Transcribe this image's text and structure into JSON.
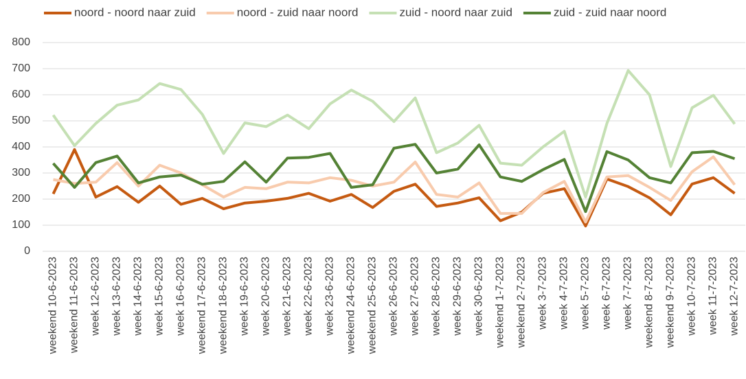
{
  "chart_data": {
    "type": "line",
    "categories": [
      "weekend 10-6-2023",
      "weekend 11-6-2023",
      "week 12-6-2023",
      "week 13-6-2023",
      "week 14-6-2023",
      "week 15-6-2023",
      "week 16-6-2023",
      "weekend 17-6-2023",
      "weekend 18-6-2023",
      "week 19-6-2023",
      "week 20-6-2023",
      "week 21-6-2023",
      "week 22-6-2023",
      "week 23-6-2023",
      "weekend 24-6-2023",
      "weekend 25-6-2023",
      "week 26-6-2023",
      "week 27-6-2023",
      "week 28-6-2023",
      "week 29-6-2023",
      "week 30-6-2023",
      "weekend 1-7-2023",
      "weekend 2-7-2023",
      "week 3-7-2023",
      "week 4-7-2023",
      "week 5-7-2023",
      "week 6-7-2023",
      "week 7-7-2023",
      "weekend 8-7-2023",
      "weekend 9-7-2023",
      "week 10-7-2023",
      "week 11-7-2023",
      "week 12-7-2023"
    ],
    "series": [
      {
        "name": "noord - noord naar zuid",
        "color": "#c55a11",
        "values": [
          220,
          390,
          208,
          248,
          188,
          250,
          180,
          203,
          163,
          185,
          192,
          203,
          222,
          192,
          218,
          168,
          230,
          257,
          172,
          185,
          205,
          117,
          150,
          222,
          240,
          97,
          277,
          248,
          205,
          140,
          258,
          282,
          222
        ]
      },
      {
        "name": "noord - zuid naar noord",
        "color": "#f8cbad",
        "values": [
          275,
          260,
          265,
          340,
          250,
          330,
          300,
          255,
          208,
          245,
          240,
          265,
          262,
          282,
          272,
          250,
          265,
          342,
          218,
          208,
          262,
          145,
          145,
          225,
          268,
          112,
          285,
          290,
          245,
          195,
          305,
          362,
          255
        ]
      },
      {
        "name": "zuid - noord naar zuid",
        "color": "#c5e0b4",
        "values": [
          522,
          405,
          490,
          560,
          580,
          643,
          620,
          525,
          375,
          492,
          478,
          522,
          470,
          565,
          618,
          575,
          497,
          588,
          378,
          415,
          483,
          338,
          330,
          400,
          460,
          208,
          490,
          693,
          600,
          325,
          550,
          598,
          488
        ]
      },
      {
        "name": "zuid - zuid naar noord",
        "color": "#548235",
        "values": [
          337,
          245,
          340,
          365,
          262,
          285,
          292,
          257,
          268,
          343,
          265,
          357,
          360,
          375,
          245,
          255,
          395,
          410,
          300,
          315,
          408,
          285,
          268,
          313,
          352,
          152,
          382,
          350,
          282,
          262,
          378,
          383,
          355
        ]
      }
    ],
    "ylim": [
      0,
      800
    ],
    "yticks": [
      0,
      100,
      200,
      300,
      400,
      500,
      600,
      700,
      800
    ],
    "grid": true,
    "legend": "top"
  }
}
